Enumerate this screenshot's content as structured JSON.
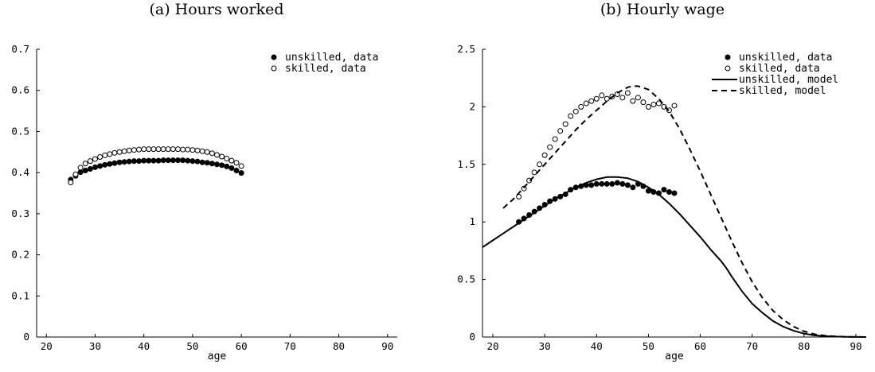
{
  "chart_data": [
    {
      "type": "scatter",
      "title": "(a) Hours worked",
      "xlabel": "age",
      "ylabel": "",
      "xlim": [
        18,
        92
      ],
      "ylim": [
        0,
        0.7
      ],
      "xticks": [
        "20",
        "30",
        "40",
        "50",
        "60",
        "70",
        "80",
        "90"
      ],
      "yticks": [
        "0",
        "0.1",
        "0.2",
        "0.3",
        "0.4",
        "0.5",
        "0.6",
        "0.7"
      ],
      "legend_position": "top-right",
      "series": [
        {
          "name": "unskilled, data",
          "marker": "filled-circle",
          "x": [
            25,
            26,
            27,
            28,
            29,
            30,
            31,
            32,
            33,
            34,
            35,
            36,
            37,
            38,
            39,
            40,
            41,
            42,
            43,
            44,
            45,
            46,
            47,
            48,
            49,
            50,
            51,
            52,
            53,
            54,
            55,
            56,
            57,
            58,
            59,
            60
          ],
          "y": [
            0.383,
            0.392,
            0.401,
            0.405,
            0.409,
            0.413,
            0.416,
            0.419,
            0.421,
            0.423,
            0.425,
            0.426,
            0.427,
            0.428,
            0.428,
            0.429,
            0.429,
            0.429,
            0.429,
            0.43,
            0.43,
            0.43,
            0.43,
            0.43,
            0.429,
            0.428,
            0.427,
            0.425,
            0.424,
            0.422,
            0.42,
            0.418,
            0.415,
            0.411,
            0.405,
            0.399
          ]
        },
        {
          "name": "skilled, data",
          "marker": "open-circle",
          "x": [
            25,
            26,
            27,
            28,
            29,
            30,
            31,
            32,
            33,
            34,
            35,
            36,
            37,
            38,
            39,
            40,
            41,
            42,
            43,
            44,
            45,
            46,
            47,
            48,
            49,
            50,
            51,
            52,
            53,
            54,
            55,
            56,
            57,
            58,
            59,
            60
          ],
          "y": [
            0.376,
            0.396,
            0.412,
            0.422,
            0.428,
            0.433,
            0.438,
            0.442,
            0.445,
            0.448,
            0.45,
            0.452,
            0.454,
            0.455,
            0.456,
            0.457,
            0.457,
            0.457,
            0.457,
            0.457,
            0.457,
            0.457,
            0.457,
            0.456,
            0.456,
            0.455,
            0.454,
            0.452,
            0.45,
            0.447,
            0.443,
            0.439,
            0.434,
            0.429,
            0.424,
            0.416
          ]
        }
      ]
    },
    {
      "type": "line",
      "title": "(b) Hourly wage",
      "xlabel": "age",
      "ylabel": "",
      "xlim": [
        18,
        92
      ],
      "ylim": [
        0,
        2.5
      ],
      "xticks": [
        "20",
        "30",
        "40",
        "50",
        "60",
        "70",
        "80",
        "90"
      ],
      "yticks": [
        "0",
        "0.5",
        "1",
        "1.5",
        "2",
        "2.5"
      ],
      "legend_position": "top-right",
      "series": [
        {
          "name": "unskilled, data",
          "marker": "filled-circle",
          "x": [
            25,
            26,
            27,
            28,
            29,
            30,
            31,
            32,
            33,
            34,
            35,
            36,
            37,
            38,
            39,
            40,
            41,
            42,
            43,
            44,
            45,
            46,
            47,
            48,
            49,
            50,
            51,
            52,
            53,
            54,
            55
          ],
          "y": [
            1.0,
            1.03,
            1.06,
            1.09,
            1.12,
            1.15,
            1.18,
            1.2,
            1.22,
            1.24,
            1.28,
            1.3,
            1.31,
            1.32,
            1.32,
            1.33,
            1.33,
            1.33,
            1.33,
            1.34,
            1.33,
            1.32,
            1.3,
            1.33,
            1.31,
            1.27,
            1.26,
            1.25,
            1.28,
            1.26,
            1.25
          ]
        },
        {
          "name": "skilled, data",
          "marker": "open-circle",
          "x": [
            25,
            26,
            27,
            28,
            29,
            30,
            31,
            32,
            33,
            34,
            35,
            36,
            37,
            38,
            39,
            40,
            41,
            42,
            43,
            44,
            45,
            46,
            47,
            48,
            49,
            50,
            51,
            52,
            53,
            54,
            55
          ],
          "y": [
            1.22,
            1.29,
            1.36,
            1.43,
            1.5,
            1.58,
            1.65,
            1.72,
            1.79,
            1.85,
            1.92,
            1.96,
            2.0,
            2.03,
            2.05,
            2.07,
            2.1,
            2.07,
            2.09,
            2.11,
            2.08,
            2.12,
            2.05,
            2.08,
            2.04,
            2.0,
            2.02,
            2.03,
            2.0,
            1.97,
            2.01
          ]
        },
        {
          "name": "unskilled, model",
          "line_style": "solid",
          "x": [
            18,
            20,
            22,
            24,
            26,
            28,
            30,
            32,
            34,
            36,
            38,
            40,
            42,
            43,
            44,
            46,
            48,
            50,
            52,
            54,
            56,
            58,
            60,
            62,
            64,
            65,
            66,
            68,
            70,
            72,
            74,
            76,
            78,
            80,
            82,
            84,
            86,
            88,
            90,
            92
          ],
          "y": [
            0.78,
            0.84,
            0.9,
            0.96,
            1.02,
            1.08,
            1.14,
            1.2,
            1.25,
            1.3,
            1.34,
            1.37,
            1.39,
            1.39,
            1.39,
            1.38,
            1.35,
            1.3,
            1.24,
            1.16,
            1.07,
            0.97,
            0.87,
            0.76,
            0.66,
            0.6,
            0.53,
            0.4,
            0.29,
            0.21,
            0.14,
            0.09,
            0.055,
            0.03,
            0.015,
            0.008,
            0.004,
            0.002,
            0.001,
            0.0
          ]
        },
        {
          "name": "skilled, model",
          "line_style": "dashed",
          "x": [
            22,
            24,
            26,
            28,
            30,
            32,
            34,
            36,
            38,
            40,
            42,
            44,
            46,
            47,
            48,
            50,
            52,
            54,
            56,
            58,
            60,
            62,
            64,
            66,
            68,
            70,
            72,
            74,
            76,
            78,
            80,
            82,
            84,
            86,
            88,
            90,
            92
          ],
          "y": [
            1.12,
            1.2,
            1.3,
            1.4,
            1.5,
            1.6,
            1.7,
            1.8,
            1.89,
            1.97,
            2.05,
            2.12,
            2.17,
            2.18,
            2.18,
            2.15,
            2.07,
            1.96,
            1.81,
            1.63,
            1.44,
            1.24,
            1.04,
            0.84,
            0.65,
            0.48,
            0.34,
            0.23,
            0.15,
            0.09,
            0.05,
            0.025,
            0.012,
            0.006,
            0.002,
            0.001,
            0.0
          ]
        }
      ]
    }
  ]
}
